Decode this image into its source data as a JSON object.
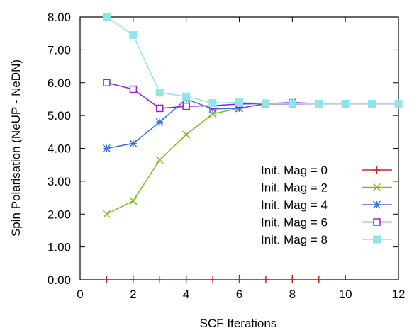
{
  "chart_data": {
    "type": "line",
    "title": "",
    "xlabel": "SCF Iterations",
    "ylabel": "Spin Polarisation (NeUP - NeDN)",
    "xlim": [
      0,
      12
    ],
    "ylim": [
      0,
      8
    ],
    "x_ticks": [
      0,
      2,
      4,
      6,
      8,
      10,
      12
    ],
    "y_ticks": [
      0,
      1,
      2,
      3,
      4,
      5,
      6,
      7,
      8
    ],
    "x_tick_labels": [
      "0",
      "2",
      "4",
      "6",
      "8",
      "10",
      "12"
    ],
    "y_tick_labels": [
      "0.00",
      "1.00",
      "2.00",
      "3.00",
      "4.00",
      "5.00",
      "6.00",
      "7.00",
      "8.00"
    ],
    "grid": false,
    "legend_position": "right, middle",
    "series": [
      {
        "name": "Init. Mag = 0",
        "color": "#c0281e",
        "marker": "plus",
        "x": [
          1,
          2,
          3,
          4,
          5,
          6,
          7,
          8,
          9
        ],
        "y": [
          0,
          0,
          0,
          0,
          0,
          0,
          0,
          0,
          0
        ]
      },
      {
        "name": "Init. Mag = 2",
        "color": "#7cba1f",
        "marker": "cross",
        "x": [
          1,
          2,
          3,
          4,
          5,
          6,
          7,
          8,
          9,
          10,
          11,
          12
        ],
        "y": [
          2.0,
          2.4,
          3.65,
          4.42,
          5.05,
          5.22,
          5.35,
          5.36,
          5.36,
          5.36,
          5.36,
          5.36
        ]
      },
      {
        "name": "Init. Mag = 4",
        "color": "#3a6fe0",
        "marker": "star",
        "x": [
          1,
          2,
          3,
          4,
          5,
          6,
          7,
          8,
          9,
          10,
          11,
          12
        ],
        "y": [
          4.0,
          4.15,
          4.8,
          5.5,
          5.2,
          5.22,
          5.36,
          5.4,
          5.36,
          5.36,
          5.36,
          5.36
        ]
      },
      {
        "name": "Init. Mag = 6",
        "color": "#9a1fd1",
        "marker": "open-square",
        "x": [
          1,
          2,
          3,
          4,
          5,
          6,
          7,
          8,
          9,
          10,
          11,
          12
        ],
        "y": [
          6.0,
          5.8,
          5.22,
          5.28,
          5.3,
          5.35,
          5.36,
          5.35,
          5.36,
          5.36,
          5.36,
          5.36
        ]
      },
      {
        "name": "Init. Mag = 8",
        "color": "#8ee6e9",
        "marker": "filled-square",
        "x": [
          1,
          2,
          3,
          4,
          5,
          6,
          7,
          8,
          9,
          10,
          11,
          12
        ],
        "y": [
          8.0,
          7.45,
          5.7,
          5.58,
          5.38,
          5.4,
          5.37,
          5.36,
          5.36,
          5.36,
          5.36,
          5.36
        ]
      }
    ]
  }
}
